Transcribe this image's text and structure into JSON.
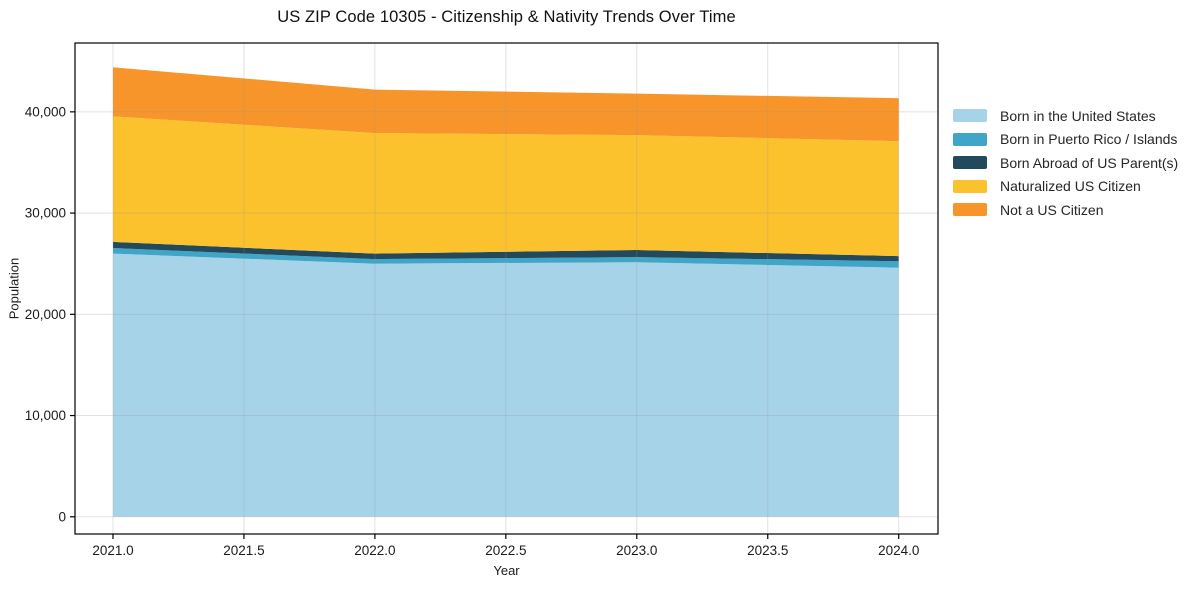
{
  "figure": {
    "background": "#ffffff"
  },
  "chart_data": {
    "type": "area",
    "stacked": true,
    "title": "US ZIP Code 10305 - Citizenship & Nativity Trends Over Time",
    "xlabel": "Year",
    "ylabel": "Population",
    "x": [
      2021,
      2022,
      2023,
      2024
    ],
    "series": [
      {
        "name": "Born in the United States",
        "color": "#a7d3e9",
        "values": [
          26000,
          25000,
          25150,
          24600
        ]
      },
      {
        "name": "Born in Puerto Rico / Islands",
        "color": "#40a5c6",
        "values": [
          550,
          450,
          500,
          650
        ]
      },
      {
        "name": "Born Abroad of US Parent(s)",
        "color": "#22495c",
        "values": [
          600,
          550,
          700,
          500
        ]
      },
      {
        "name": "Naturalized US Citizen",
        "color": "#fcc22e",
        "values": [
          12400,
          11900,
          11350,
          11350
        ]
      },
      {
        "name": "Not a US Citizen",
        "color": "#f8952a",
        "values": [
          4850,
          4300,
          4100,
          4250
        ]
      }
    ],
    "stacked_totals": [
      44400,
      42200,
      41800,
      41350
    ],
    "xlim": [
      2020.855,
      2024.15
    ],
    "ylim": [
      -1700,
      46800
    ],
    "x_ticks": {
      "values": [
        2021.0,
        2021.5,
        2022.0,
        2022.5,
        2023.0,
        2023.5,
        2024.0
      ],
      "labels": [
        "2021.0",
        "2021.5",
        "2022.0",
        "2022.5",
        "2023.0",
        "2023.5",
        "2024.0"
      ]
    },
    "y_ticks": {
      "values": [
        0,
        10000,
        20000,
        30000,
        40000
      ],
      "labels": [
        "0",
        "10,000",
        "20,000",
        "30,000",
        "40,000"
      ]
    },
    "grid": true,
    "legend_position": "right-outside",
    "colors": {
      "spine": "#000000",
      "tick_text": "#1b1b1b",
      "grid": "rgba(150,150,150,0.28)",
      "legend_text": "#262626"
    }
  }
}
